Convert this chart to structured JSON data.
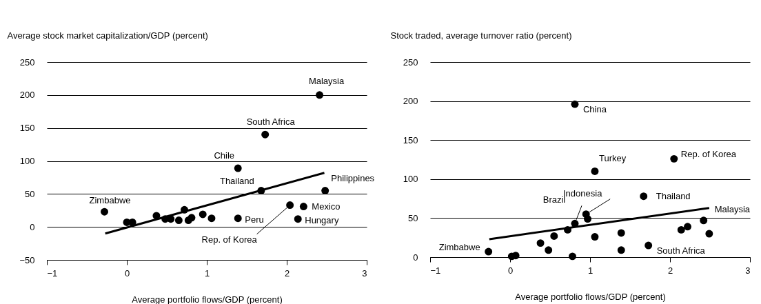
{
  "chart_data": [
    {
      "type": "scatter",
      "ylabel": "Average stock market capitalization/GDP (percent)",
      "xlabel": "Average portfolio flows/GDP (percent)",
      "xlim": [
        -1,
        3
      ],
      "xticks": [
        -1,
        0,
        1,
        2,
        3
      ],
      "ylim": [
        -50,
        250
      ],
      "yticks": [
        -50,
        0,
        50,
        100,
        150,
        200,
        250
      ],
      "grid": "y",
      "series": [
        {
          "color": "#000000",
          "marker": "circle",
          "x": [
            -0.28,
            0,
            0.07,
            0.37,
            0.48,
            0.55,
            0.65,
            0.72,
            0.77,
            0.81,
            0.95,
            1.06,
            1.39,
            1.39,
            1.68,
            1.73,
            2.41,
            2.48,
            2.04,
            2.21,
            2.14
          ],
          "values": [
            23,
            7,
            7,
            17,
            12,
            12,
            10,
            26,
            10,
            14,
            19,
            13,
            13,
            89,
            55,
            140,
            200,
            55,
            33,
            31,
            12
          ]
        },
        {
          "type": "line",
          "color": "#000000",
          "x": [
            -0.27,
            2.47
          ],
          "values": [
            -10,
            82
          ]
        }
      ],
      "annotations": [
        {
          "text": "Malaysia",
          "x": 2.41,
          "y": 200
        },
        {
          "text": "South Africa",
          "x": 1.73,
          "y": 140
        },
        {
          "text": "Chile",
          "x": 1.39,
          "y": 89
        },
        {
          "text": "Thailand",
          "x": 1.68,
          "y": 55
        },
        {
          "text": "Philippines",
          "x": 2.48,
          "y": 55
        },
        {
          "text": "Zimbabwe",
          "x": -0.28,
          "y": 23
        },
        {
          "text": "Mexico",
          "x": 2.21,
          "y": 31
        },
        {
          "text": "Peru",
          "x": 1.39,
          "y": 13
        },
        {
          "text": "Hungary",
          "x": 2.14,
          "y": 12
        },
        {
          "text": "Rep. of Korea",
          "x": 2.04,
          "y": 33
        }
      ]
    },
    {
      "type": "scatter",
      "ylabel": "Stock traded, average turnover ratio (percent)",
      "xlabel": "Average portfolio flows/GDP (percent)",
      "xlim": [
        -1,
        3
      ],
      "xticks": [
        -1,
        0,
        1,
        2,
        3
      ],
      "ylim": [
        0,
        250
      ],
      "yticks": [
        0,
        50,
        100,
        150,
        200,
        250
      ],
      "grid": "y",
      "series": [
        {
          "color": "#000000",
          "marker": "circle",
          "x": [
            -0.27,
            0.02,
            0.07,
            0.38,
            0.48,
            0.55,
            0.72,
            0.81,
            0.78,
            0.81,
            0.95,
            0.97,
            1.06,
            1.06,
            1.39,
            1.39,
            1.73,
            1.67,
            2.05,
            2.14,
            2.22,
            2.42,
            2.49
          ],
          "values": [
            7,
            1,
            2,
            18,
            9,
            27,
            35,
            43,
            1,
            196,
            55,
            49,
            110,
            26,
            31,
            9,
            15,
            78,
            126,
            35,
            39,
            47,
            30
          ]
        },
        {
          "type": "line",
          "color": "#000000",
          "x": [
            -0.26,
            2.49
          ],
          "values": [
            23,
            63
          ]
        }
      ],
      "annotations": [
        {
          "text": "China",
          "x": 0.81,
          "y": 196
        },
        {
          "text": "Turkey",
          "x": 1.06,
          "y": 110
        },
        {
          "text": "Rep. of Korea",
          "x": 2.05,
          "y": 126
        },
        {
          "text": "Thailand",
          "x": 1.67,
          "y": 78
        },
        {
          "text": "Indonesia",
          "x": 0.95,
          "y": 55
        },
        {
          "text": "Brazil",
          "x": 0.81,
          "y": 43
        },
        {
          "text": "Malaysia",
          "x": 2.42,
          "y": 47
        },
        {
          "text": "Zimbabwe",
          "x": -0.27,
          "y": 7
        },
        {
          "text": "South Africa",
          "x": 1.73,
          "y": 15
        }
      ]
    }
  ]
}
